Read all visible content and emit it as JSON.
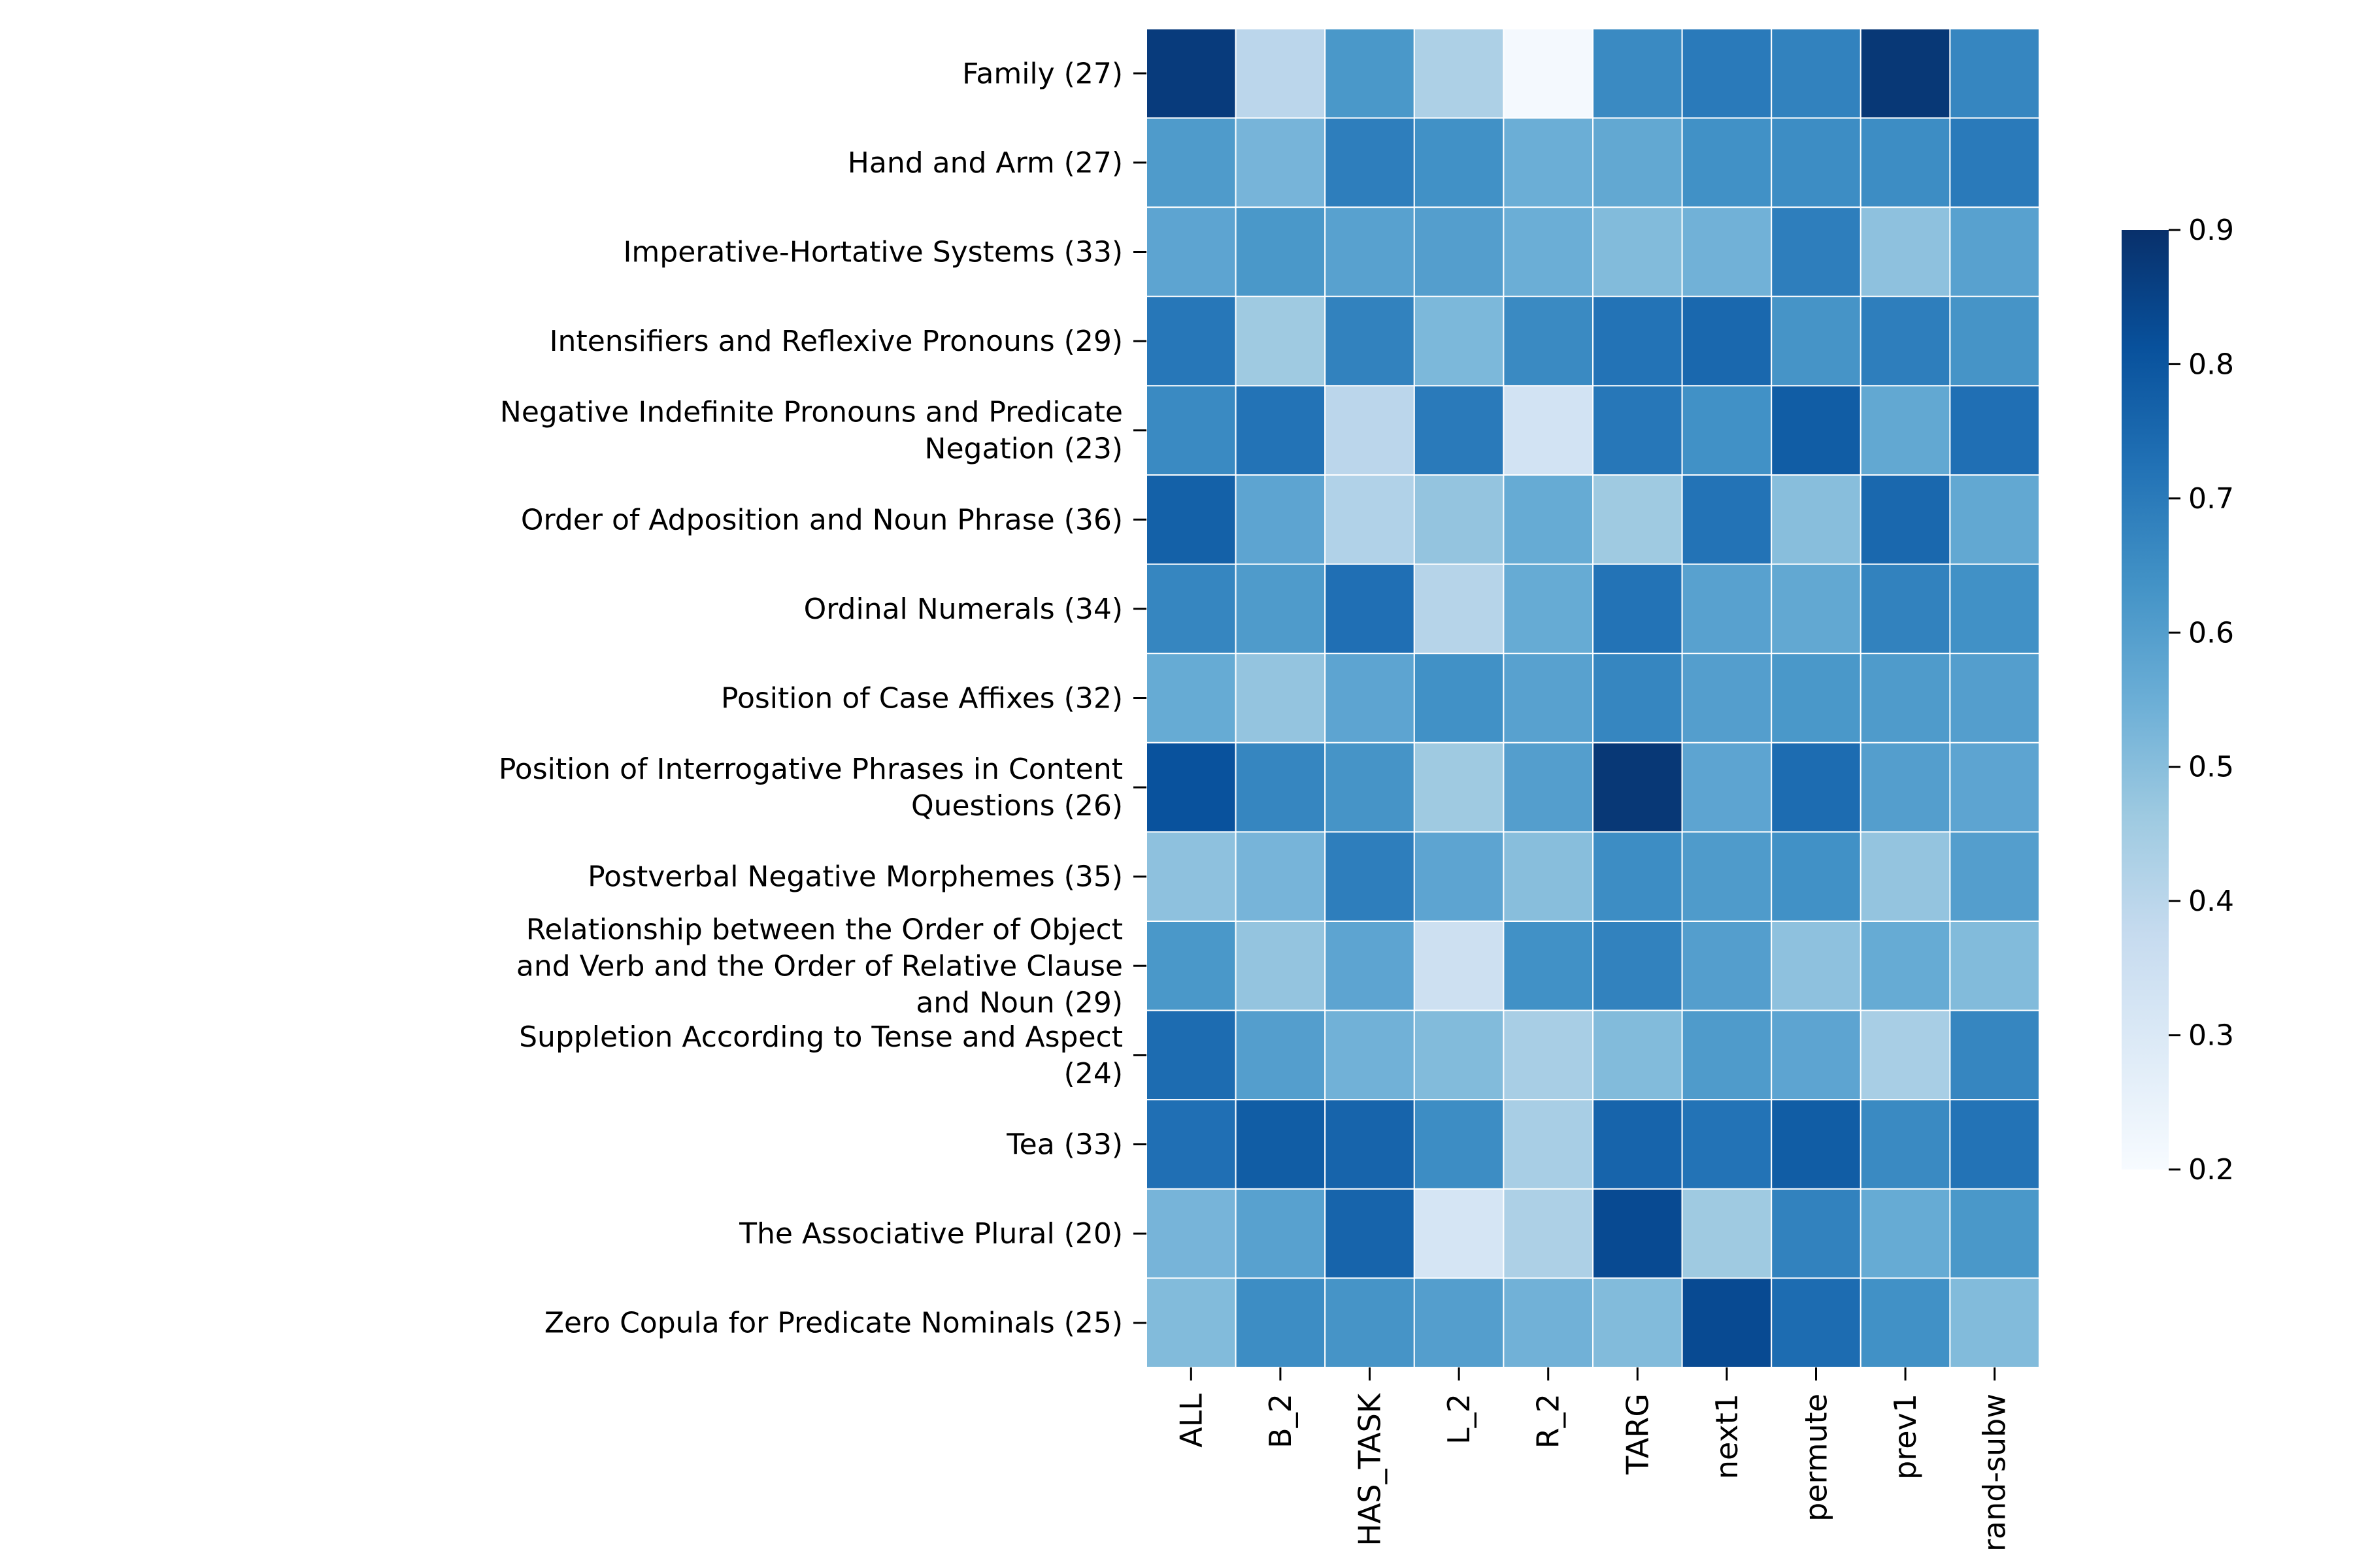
{
  "chart_data": {
    "type": "heatmap",
    "title": "",
    "xlabel": "",
    "ylabel": "",
    "columns": [
      "ALL",
      "B_2",
      "HAS_TASK",
      "L_2",
      "R_2",
      "TARG",
      "next1",
      "permute",
      "prev1",
      "rand-subw"
    ],
    "rows": [
      {
        "label": [
          "Family (27)"
        ],
        "values": [
          0.87,
          0.4,
          0.62,
          0.43,
          0.21,
          0.66,
          0.7,
          0.68,
          0.88,
          0.67
        ]
      },
      {
        "label": [
          "Hand and Arm (27)"
        ],
        "values": [
          0.61,
          0.53,
          0.69,
          0.64,
          0.55,
          0.57,
          0.64,
          0.65,
          0.65,
          0.7
        ]
      },
      {
        "label": [
          "Imperative-Hortative Systems (33)"
        ],
        "values": [
          0.58,
          0.62,
          0.59,
          0.6,
          0.55,
          0.51,
          0.54,
          0.69,
          0.49,
          0.59
        ]
      },
      {
        "label": [
          "Intensifiers and Reflexive Pronouns (29)"
        ],
        "values": [
          0.71,
          0.46,
          0.68,
          0.52,
          0.66,
          0.72,
          0.75,
          0.63,
          0.69,
          0.63
        ]
      },
      {
        "label": [
          "Negative Indefinite Pronouns and Predicate",
          "Negation (23)"
        ],
        "values": [
          0.66,
          0.72,
          0.4,
          0.7,
          0.33,
          0.71,
          0.64,
          0.78,
          0.57,
          0.73
        ]
      },
      {
        "label": [
          "Order of Adposition and Noun Phrase (36)"
        ],
        "values": [
          0.77,
          0.58,
          0.42,
          0.48,
          0.56,
          0.46,
          0.72,
          0.5,
          0.75,
          0.57
        ]
      },
      {
        "label": [
          "Ordinal Numerals (34)"
        ],
        "values": [
          0.67,
          0.61,
          0.73,
          0.41,
          0.56,
          0.72,
          0.59,
          0.57,
          0.68,
          0.64
        ]
      },
      {
        "label": [
          "Position of Case Affixes (32)"
        ],
        "values": [
          0.56,
          0.48,
          0.58,
          0.64,
          0.59,
          0.67,
          0.6,
          0.62,
          0.61,
          0.6
        ]
      },
      {
        "label": [
          "Position of Interrogative Phrases in Content",
          "Questions (26)"
        ],
        "values": [
          0.81,
          0.67,
          0.63,
          0.46,
          0.6,
          0.88,
          0.58,
          0.74,
          0.6,
          0.58
        ]
      },
      {
        "label": [
          "Postverbal Negative Morphemes (35)"
        ],
        "values": [
          0.49,
          0.53,
          0.69,
          0.58,
          0.5,
          0.65,
          0.61,
          0.64,
          0.48,
          0.6
        ]
      },
      {
        "label": [
          "Relationship between the Order of Object",
          "and Verb and the Order of Relative Clause",
          "and Noun (29)"
        ],
        "values": [
          0.62,
          0.48,
          0.58,
          0.35,
          0.64,
          0.68,
          0.6,
          0.49,
          0.56,
          0.51
        ]
      },
      {
        "label": [
          "Suppletion According to Tense and Aspect",
          "(24)"
        ],
        "values": [
          0.74,
          0.6,
          0.54,
          0.51,
          0.44,
          0.51,
          0.61,
          0.58,
          0.44,
          0.67
        ]
      },
      {
        "label": [
          "Tea (33)"
        ],
        "values": [
          0.73,
          0.78,
          0.76,
          0.65,
          0.44,
          0.76,
          0.72,
          0.78,
          0.66,
          0.72
        ]
      },
      {
        "label": [
          "The Associative Plural (20)"
        ],
        "values": [
          0.53,
          0.59,
          0.76,
          0.32,
          0.43,
          0.83,
          0.46,
          0.68,
          0.56,
          0.62
        ]
      },
      {
        "label": [
          "Zero Copula for Predicate Nominals (25)"
        ],
        "values": [
          0.51,
          0.65,
          0.63,
          0.6,
          0.54,
          0.51,
          0.83,
          0.74,
          0.64,
          0.51
        ]
      }
    ],
    "colorbar": {
      "min": 0.2,
      "max": 0.9,
      "ticks": [
        "0.2",
        "0.3",
        "0.4",
        "0.5",
        "0.6",
        "0.7",
        "0.8",
        "0.9"
      ],
      "colormap": "Blues",
      "colors": [
        "#f7fbff",
        "#deebf7",
        "#c6dbef",
        "#9ecae1",
        "#6baed6",
        "#4292c6",
        "#2171b5",
        "#08519c",
        "#08306b"
      ]
    }
  }
}
